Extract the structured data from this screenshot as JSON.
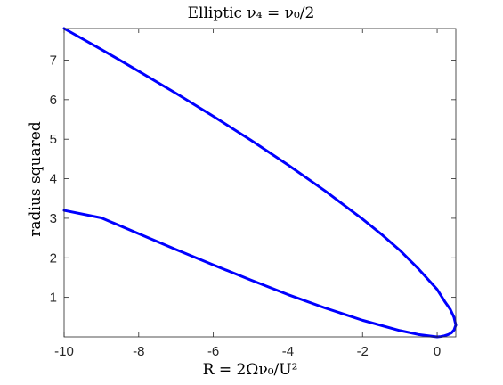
{
  "chart_data": {
    "type": "line",
    "title": "Elliptic ν₄ = ν₀/2",
    "xlabel": "R = 2Ων₀/U²",
    "ylabel": "radius squared",
    "xlim": [
      -10,
      0.5
    ],
    "ylim": [
      0,
      7.8
    ],
    "xticks": [
      -10,
      -8,
      -6,
      -4,
      -2,
      0
    ],
    "yticks": [
      1,
      2,
      3,
      4,
      5,
      6,
      7
    ],
    "grid": false,
    "box": true,
    "series_color": "#0000ff",
    "series": [
      {
        "x": [
          -10,
          -9,
          -8,
          -7,
          -6,
          -5,
          -4,
          -3,
          -2,
          -1.5,
          -1,
          -0.5,
          0,
          0.2,
          0.35,
          0.45,
          0.5
        ],
        "y": [
          7.8,
          7.27,
          6.72,
          6.16,
          5.58,
          4.98,
          4.35,
          3.69,
          2.98,
          2.6,
          2.19,
          1.72,
          1.2,
          0.9,
          0.7,
          0.5,
          0.3
        ]
      },
      {
        "x": [
          0.5,
          0.45,
          0.38,
          0.3,
          0.2,
          0.1,
          0,
          -0.5,
          -1,
          -2,
          -3,
          -4,
          -5,
          -6,
          -7,
          -8,
          -9,
          -10
        ],
        "y": [
          0.3,
          0.17,
          0.1,
          0.06,
          0.03,
          0.01,
          0.0,
          0.06,
          0.16,
          0.42,
          0.73,
          1.07,
          1.44,
          1.82,
          2.21,
          2.61,
          3.01,
          3.2
        ]
      }
    ]
  }
}
